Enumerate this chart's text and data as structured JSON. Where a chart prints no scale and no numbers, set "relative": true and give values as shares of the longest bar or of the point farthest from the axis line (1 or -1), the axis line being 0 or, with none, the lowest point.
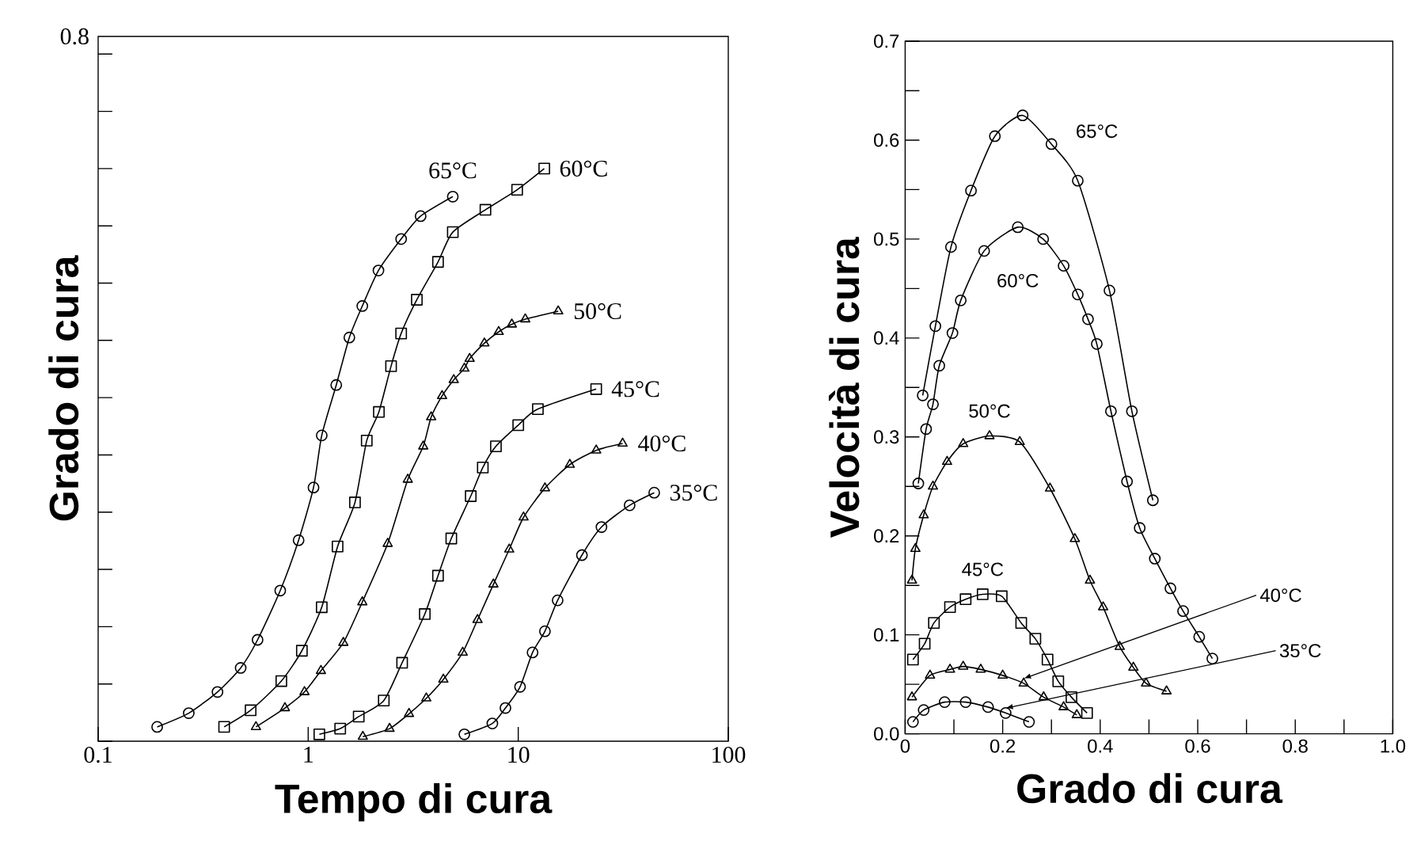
{
  "chart_data": [
    {
      "type": "line",
      "xlabel": "Tempo di cura",
      "ylabel": "Grado di cura",
      "log": "x",
      "xlim": [
        0.1,
        100
      ],
      "relative": true,
      "xticks": [
        0.1,
        1,
        10,
        100
      ],
      "annotations": [
        "0.8"
      ],
      "series": [
        {
          "name": "65°C",
          "color": "#000000",
          "marker": "circle",
          "x": [
            0.191,
            0.27,
            0.37,
            0.477,
            0.574,
            0.736,
            0.9,
            1.06,
            1.16,
            1.36,
            1.57,
            1.81,
            2.16,
            2.77,
            3.43,
            4.88
          ],
          "values": [
            0.025,
            0.049,
            0.086,
            0.128,
            0.177,
            0.263,
            0.351,
            0.443,
            0.534,
            0.622,
            0.705,
            0.76,
            0.822,
            0.877,
            0.917,
            0.951
          ]
        },
        {
          "name": "60°C",
          "color": "#000000",
          "marker": "square",
          "x": [
            0.398,
            0.532,
            0.745,
            0.933,
            1.16,
            1.38,
            1.67,
            1.9,
            2.17,
            2.48,
            2.77,
            3.29,
            4.15,
            4.88,
            6.98,
            9.88,
            13.3
          ],
          "values": [
            0.025,
            0.054,
            0.105,
            0.158,
            0.234,
            0.34,
            0.417,
            0.525,
            0.575,
            0.655,
            0.712,
            0.771,
            0.837,
            0.889,
            0.928,
            0.963,
            1
          ]
        },
        {
          "name": "50°C",
          "color": "#000000",
          "marker": "triangle",
          "x": [
            0.564,
            0.775,
            0.96,
            1.15,
            1.47,
            1.81,
            2.39,
            2.98,
            3.53,
            3.85,
            4.34,
            4.93,
            5.54,
            5.87,
            6.9,
            8.07,
            9.32,
            10.8,
            15.5
          ],
          "values": [
            0.025,
            0.058,
            0.086,
            0.123,
            0.172,
            0.243,
            0.345,
            0.457,
            0.515,
            0.566,
            0.603,
            0.631,
            0.651,
            0.668,
            0.695,
            0.715,
            0.728,
            0.737,
            0.751
          ]
        },
        {
          "name": "45°C",
          "color": "#000000",
          "marker": "square",
          "x": [
            1.13,
            1.42,
            1.74,
            2.29,
            2.8,
            3.59,
            4.15,
            4.8,
            5.94,
            6.78,
            7.83,
            10,
            12.4,
            23.5
          ],
          "values": [
            0.012,
            0.022,
            0.043,
            0.071,
            0.137,
            0.222,
            0.289,
            0.354,
            0.428,
            0.478,
            0.515,
            0.552,
            0.58,
            0.615
          ]
        },
        {
          "name": "40°C",
          "color": "#000000",
          "marker": "triangle",
          "x": [
            1.82,
            2.44,
            3.02,
            3.65,
            4.4,
            5.44,
            6.4,
            7.62,
            9.06,
            10.6,
            13.4,
            17.6,
            23.5,
            31.4
          ],
          "values": [
            0.008,
            0.022,
            0.048,
            0.075,
            0.108,
            0.155,
            0.212,
            0.274,
            0.335,
            0.391,
            0.442,
            0.483,
            0.508,
            0.52
          ]
        },
        {
          "name": "35°C",
          "color": "#000000",
          "marker": "circle",
          "x": [
            5.54,
            7.53,
            8.69,
            10.2,
            11.7,
            13.4,
            15.4,
            20.1,
            24.9,
            33.9,
            44.4
          ],
          "values": [
            0.012,
            0.031,
            0.058,
            0.095,
            0.155,
            0.192,
            0.246,
            0.325,
            0.374,
            0.412,
            0.434
          ]
        }
      ]
    },
    {
      "type": "line",
      "xlabel": "Grado di cura",
      "ylabel": "Velocità di cura",
      "xlim": [
        0,
        1
      ],
      "ylim": [
        0,
        0.7
      ],
      "xticks": [
        0,
        {
          "value": 0.1,
          "label": null
        },
        0.2,
        {
          "value": 0.3,
          "label": null
        },
        0.4,
        {
          "value": 0.5,
          "label": null
        },
        0.6,
        {
          "value": 0.7,
          "label": null
        },
        0.8,
        {
          "value": 0.9,
          "label": null
        },
        {
          "value": 1,
          "label": "1.0"
        }
      ],
      "yticks": [
        {
          "value": 0,
          "label": "0.0"
        },
        {
          "value": 0.05,
          "label": null
        },
        0.1,
        {
          "value": 0.15,
          "label": null
        },
        0.2,
        {
          "value": 0.25,
          "label": null
        },
        0.3,
        {
          "value": 0.35,
          "label": null
        },
        0.4,
        {
          "value": 0.45,
          "label": null
        },
        0.5,
        {
          "value": 0.55,
          "label": null
        },
        0.6,
        {
          "value": 0.65,
          "label": null
        },
        0.7
      ],
      "series": [
        {
          "name": "65°C",
          "color": "#000000",
          "marker": "circle",
          "x": [
            0.036,
            0.062,
            0.094,
            0.135,
            0.184,
            0.241,
            0.3,
            0.354,
            0.419,
            0.465,
            0.508
          ],
          "values": [
            0.342,
            0.412,
            0.492,
            0.549,
            0.604,
            0.625,
            0.596,
            0.559,
            0.448,
            0.326,
            0.236
          ]
        },
        {
          "name": "60°C",
          "color": "#000000",
          "marker": "circle",
          "x": [
            0.027,
            0.043,
            0.057,
            0.07,
            0.097,
            0.114,
            0.162,
            0.231,
            0.283,
            0.325,
            0.354,
            0.375,
            0.393,
            0.422,
            0.455,
            0.481,
            0.512,
            0.544,
            0.57,
            0.603,
            0.63
          ],
          "values": [
            0.253,
            0.308,
            0.333,
            0.372,
            0.405,
            0.438,
            0.488,
            0.512,
            0.5,
            0.473,
            0.444,
            0.419,
            0.394,
            0.326,
            0.255,
            0.208,
            0.177,
            0.147,
            0.124,
            0.098,
            0.076
          ]
        },
        {
          "name": "50°C",
          "color": "#000000",
          "marker": "triangle",
          "x": [
            0.014,
            0.021,
            0.038,
            0.057,
            0.086,
            0.119,
            0.173,
            0.235,
            0.297,
            0.348,
            0.379,
            0.406,
            0.44,
            0.468,
            0.494,
            0.536
          ],
          "values": [
            0.155,
            0.187,
            0.221,
            0.25,
            0.275,
            0.293,
            0.301,
            0.295,
            0.248,
            0.197,
            0.155,
            0.128,
            0.088,
            0.067,
            0.051,
            0.043
          ]
        },
        {
          "name": "45°C",
          "color": "#000000",
          "marker": "square",
          "x": [
            0.016,
            0.04,
            0.059,
            0.092,
            0.124,
            0.159,
            0.198,
            0.238,
            0.267,
            0.292,
            0.314,
            0.341,
            0.373
          ],
          "values": [
            0.075,
            0.091,
            0.112,
            0.128,
            0.136,
            0.141,
            0.139,
            0.112,
            0.096,
            0.075,
            0.053,
            0.037,
            0.021
          ]
        },
        {
          "name": "40°C",
          "color": "#000000",
          "marker": "triangle",
          "x": [
            0.014,
            0.051,
            0.092,
            0.119,
            0.155,
            0.2,
            0.243,
            0.284,
            0.325,
            0.352
          ],
          "values": [
            0.037,
            0.059,
            0.065,
            0.068,
            0.065,
            0.059,
            0.051,
            0.037,
            0.027,
            0.019
          ]
        },
        {
          "name": "35°C",
          "color": "#000000",
          "marker": "circle",
          "x": [
            0.016,
            0.038,
            0.081,
            0.124,
            0.17,
            0.206,
            0.254
          ],
          "values": [
            0.012,
            0.024,
            0.032,
            0.032,
            0.027,
            0.021,
            0.012
          ]
        }
      ]
    }
  ]
}
